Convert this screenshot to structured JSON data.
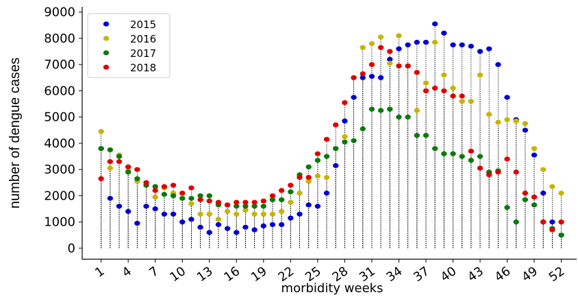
{
  "chart_data": {
    "type": "stem",
    "x_label": "morbidity weeks",
    "y_label": "number of dengue cases",
    "x": [
      1,
      2,
      3,
      4,
      5,
      6,
      7,
      8,
      9,
      10,
      11,
      12,
      13,
      14,
      15,
      16,
      17,
      18,
      19,
      20,
      21,
      22,
      23,
      24,
      25,
      26,
      27,
      28,
      29,
      30,
      31,
      32,
      33,
      34,
      35,
      36,
      37,
      38,
      39,
      40,
      41,
      42,
      43,
      44,
      45,
      46,
      47,
      48,
      49,
      50,
      51,
      52
    ],
    "xlim": [
      -1.1,
      53.7
    ],
    "xticks": [
      1,
      4,
      7,
      10,
      13,
      16,
      19,
      22,
      25,
      28,
      31,
      34,
      37,
      40,
      43,
      46,
      49,
      52
    ],
    "ylim": [
      -420,
      9200
    ],
    "yticks": [
      0,
      1000,
      2000,
      3000,
      4000,
      5000,
      6000,
      7000,
      8000,
      9000
    ],
    "legend": "upper left",
    "series": [
      {
        "name": "2015",
        "color": "#0000d0",
        "values": [
          3800,
          1900,
          1600,
          1400,
          950,
          1600,
          1500,
          1300,
          1300,
          1000,
          1100,
          800,
          600,
          900,
          750,
          600,
          800,
          700,
          850,
          900,
          900,
          1150,
          1300,
          1650,
          1600,
          2100,
          3150,
          4850,
          5750,
          6500,
          6550,
          6500,
          7200,
          7600,
          7750,
          7850,
          7850,
          8550,
          8200,
          7750,
          7750,
          7700,
          7500,
          7600,
          7000,
          5750,
          4900,
          4500,
          3550,
          2100,
          1000,
          500
        ]
      },
      {
        "name": "2016",
        "color": "#c8b400",
        "values": [
          4450,
          3050,
          3550,
          2950,
          2550,
          2400,
          1950,
          2300,
          2100,
          1900,
          1700,
          1300,
          1300,
          1100,
          1400,
          1300,
          1450,
          1300,
          1300,
          1300,
          1400,
          1750,
          2100,
          2550,
          2750,
          2700,
          3800,
          4250,
          6500,
          7650,
          7800,
          8050,
          7050,
          8100,
          6950,
          5250,
          6300,
          7850,
          6600,
          6100,
          5600,
          5600,
          6600,
          5100,
          4800,
          4900,
          4850,
          4750,
          3800,
          3000,
          2350,
          2100
        ]
      },
      {
        "name": "2017",
        "color": "#0a7a0a",
        "values": [
          3800,
          3750,
          3500,
          2900,
          2650,
          2400,
          2350,
          2050,
          2000,
          1900,
          1900,
          2000,
          2000,
          1650,
          1650,
          1600,
          1600,
          1600,
          1600,
          1850,
          1850,
          2150,
          2800,
          3100,
          3350,
          3500,
          3800,
          4050,
          4100,
          4550,
          5300,
          5250,
          5300,
          5000,
          5000,
          4300,
          4300,
          3800,
          3600,
          3600,
          3500,
          3350,
          3500,
          2900,
          2950,
          1550,
          1000,
          1850,
          1650,
          1000,
          750,
          500
        ]
      },
      {
        "name": "2018",
        "color": "#e00000",
        "values": [
          2650,
          3300,
          3300,
          3100,
          3000,
          2500,
          2200,
          2350,
          2400,
          2100,
          2300,
          1850,
          1800,
          1750,
          1650,
          1750,
          1750,
          1750,
          1800,
          2000,
          2200,
          2400,
          2700,
          2700,
          3600,
          4150,
          4700,
          5550,
          6500,
          6650,
          7000,
          7650,
          7500,
          6950,
          6950,
          6700,
          6000,
          6100,
          6000,
          5800,
          5800,
          3700,
          3050,
          2800,
          2900,
          3400,
          2900,
          2100,
          1950,
          1000,
          700,
          1000
        ]
      }
    ]
  }
}
